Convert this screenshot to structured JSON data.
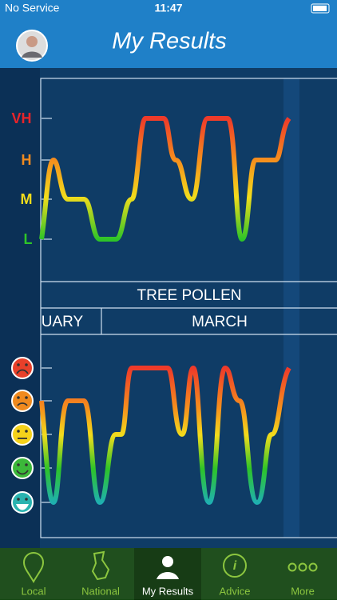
{
  "status": {
    "carrier": "No Service",
    "time": "11:47"
  },
  "header": {
    "title": "My Results"
  },
  "chart": {
    "levels": [
      "VH",
      "H",
      "M",
      "L"
    ],
    "title": "TREE POLLEN",
    "months": [
      "UARY",
      "MARCH"
    ]
  },
  "tabs": [
    "Local",
    "National",
    "My Results",
    "Advice",
    "More"
  ]
}
